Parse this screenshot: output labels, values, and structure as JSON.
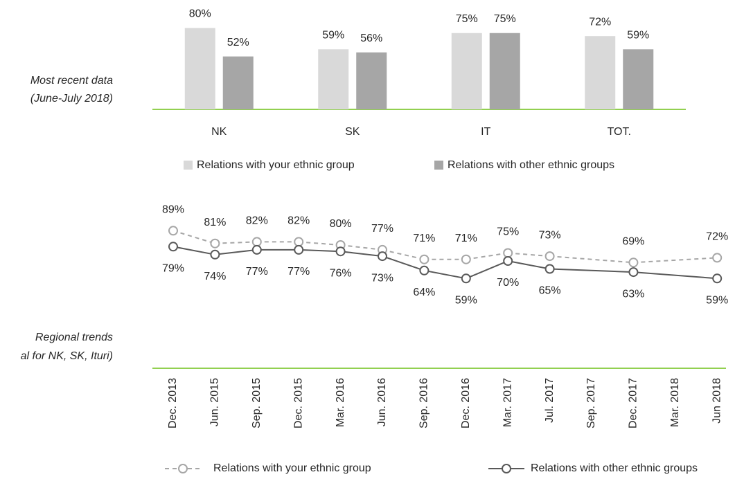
{
  "side_labels": {
    "recent": [
      "Most recent data",
      "(June-July 2018)"
    ],
    "trends": [
      "Regional trends",
      "al for NK, SK, Ituri)"
    ]
  },
  "chart_data": [
    {
      "type": "bar",
      "categories": [
        "NK",
        "SK",
        "IT",
        "TOT."
      ],
      "series": [
        {
          "name": "Relations with your ethnic group",
          "color": "#d9d9d9",
          "values": [
            80,
            59,
            75,
            72
          ],
          "value_labels": [
            "80%",
            "59%",
            "75%",
            "72%"
          ]
        },
        {
          "name": "Relations with other ethnic groups",
          "color": "#a6a6a6",
          "values": [
            52,
            56,
            75,
            59
          ],
          "value_labels": [
            "52%",
            "56%",
            "75%",
            "59%"
          ]
        }
      ]
    },
    {
      "type": "line",
      "categories": [
        "Dec. 2013",
        "Jun. 2015",
        "Sep. 2015",
        "Dec. 2015",
        "Mar. 2016",
        "Jun. 2016",
        "Sep. 2016",
        "Dec. 2016",
        "Mar. 2017",
        "Jul. 2017",
        "Sep. 2017",
        "Dec. 2017",
        "Mar. 2018",
        "Jun 2018"
      ],
      "series": [
        {
          "name": "Relations with your ethnic group",
          "color": "#a6a6a6",
          "dashed": true,
          "values": [
            89,
            81,
            82,
            82,
            80,
            77,
            71,
            71,
            75,
            73,
            null,
            69,
            null,
            72
          ],
          "value_labels": [
            "89%",
            "81%",
            "82%",
            "82%",
            "80%",
            "77%",
            "71%",
            "71%",
            "75%",
            "73%",
            null,
            "69%",
            null,
            "72%"
          ]
        },
        {
          "name": "Relations with other ethnic groups",
          "color": "#595959",
          "dashed": false,
          "values": [
            79,
            74,
            77,
            77,
            76,
            73,
            64,
            59,
            70,
            65,
            null,
            63,
            null,
            59
          ],
          "value_labels": [
            "79%",
            "74%",
            "77%",
            "77%",
            "76%",
            "73%",
            "64%",
            "59%",
            "70%",
            "65%",
            null,
            "63%",
            null,
            "59%"
          ]
        }
      ]
    }
  ]
}
